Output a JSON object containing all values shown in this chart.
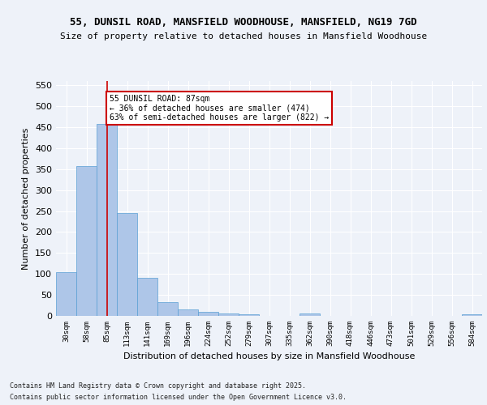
{
  "title1": "55, DUNSIL ROAD, MANSFIELD WOODHOUSE, MANSFIELD, NG19 7GD",
  "title2": "Size of property relative to detached houses in Mansfield Woodhouse",
  "xlabel": "Distribution of detached houses by size in Mansfield Woodhouse",
  "ylabel": "Number of detached properties",
  "bar_labels": [
    "30sqm",
    "58sqm",
    "85sqm",
    "113sqm",
    "141sqm",
    "169sqm",
    "196sqm",
    "224sqm",
    "252sqm",
    "279sqm",
    "307sqm",
    "335sqm",
    "362sqm",
    "390sqm",
    "418sqm",
    "446sqm",
    "473sqm",
    "501sqm",
    "529sqm",
    "556sqm",
    "584sqm"
  ],
  "bar_values": [
    105,
    357,
    457,
    245,
    91,
    33,
    15,
    10,
    6,
    4,
    0,
    0,
    5,
    0,
    0,
    0,
    0,
    0,
    0,
    0,
    4
  ],
  "bar_color": "#aec6e8",
  "bar_edge_color": "#5a9fd4",
  "vline_x": 2,
  "vline_color": "#cc0000",
  "annotation_text": "55 DUNSIL ROAD: 87sqm\n← 36% of detached houses are smaller (474)\n63% of semi-detached houses are larger (822) →",
  "annotation_box_color": "#ffffff",
  "annotation_box_edge": "#cc0000",
  "ylim": [
    0,
    560
  ],
  "yticks": [
    0,
    50,
    100,
    150,
    200,
    250,
    300,
    350,
    400,
    450,
    500,
    550
  ],
  "footer1": "Contains HM Land Registry data © Crown copyright and database right 2025.",
  "footer2": "Contains public sector information licensed under the Open Government Licence v3.0.",
  "bg_color": "#eef2f9",
  "plot_bg_color": "#eef2f9"
}
